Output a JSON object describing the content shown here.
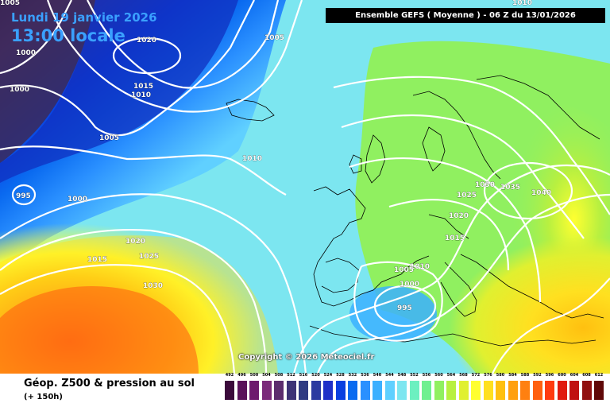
{
  "header": {
    "date": "Lundi 19 janvier 2026",
    "time": "13:00 locale",
    "run": "Ensemble GEFS  ( Moyenne )  -  06 Z du 13/01/2026"
  },
  "copyright": "Copyright © 2026 Meteociel.fr",
  "footer": {
    "title": "Géop. Z500 & pression au sol",
    "subtitle": "(+ 150h)"
  },
  "legend": {
    "ticks": [
      "492",
      "496",
      "500",
      "504",
      "508",
      "512",
      "516",
      "520",
      "524",
      "528",
      "532",
      "536",
      "540",
      "544",
      "548",
      "552",
      "556",
      "560",
      "564",
      "568",
      "572",
      "576",
      "580",
      "584",
      "588",
      "592",
      "596",
      "600",
      "604",
      "608",
      "612"
    ],
    "colors": [
      "#3b0a3b",
      "#5a125a",
      "#6d1a6d",
      "#7a2a7a",
      "#5c2d6e",
      "#3d3376",
      "#303b82",
      "#2b3aa0",
      "#1f30c8",
      "#0a40e0",
      "#0a6af0",
      "#2a90ff",
      "#3cb0ff",
      "#60d0ff",
      "#7ce6f0",
      "#6cf0c0",
      "#70f090",
      "#90f060",
      "#b8f040",
      "#e0f030",
      "#ffff30",
      "#ffe020",
      "#ffc010",
      "#ffa010",
      "#ff8010",
      "#ff6010",
      "#ff3a10",
      "#e01a10",
      "#c01010",
      "#901010",
      "#600808"
    ]
  },
  "isobars": [
    {
      "label": "1020",
      "cls": "h"
    },
    {
      "label": "1005"
    },
    {
      "label": "1000"
    },
    {
      "label": "1000"
    },
    {
      "label": "1015"
    },
    {
      "label": "1010"
    },
    {
      "label": "1005"
    },
    {
      "label": "1010"
    },
    {
      "label": "995"
    },
    {
      "label": "1000"
    },
    {
      "label": "1020"
    },
    {
      "label": "1015"
    },
    {
      "label": "1025"
    },
    {
      "label": "1030"
    },
    {
      "label": "1030"
    },
    {
      "label": "1035"
    },
    {
      "label": "1040"
    },
    {
      "label": "1025"
    },
    {
      "label": "1020"
    },
    {
      "label": "1015"
    },
    {
      "label": "1010"
    },
    {
      "label": "1005"
    },
    {
      "label": "1000"
    },
    {
      "label": "995"
    },
    {
      "label": "1005"
    },
    {
      "label": "1010"
    }
  ]
}
